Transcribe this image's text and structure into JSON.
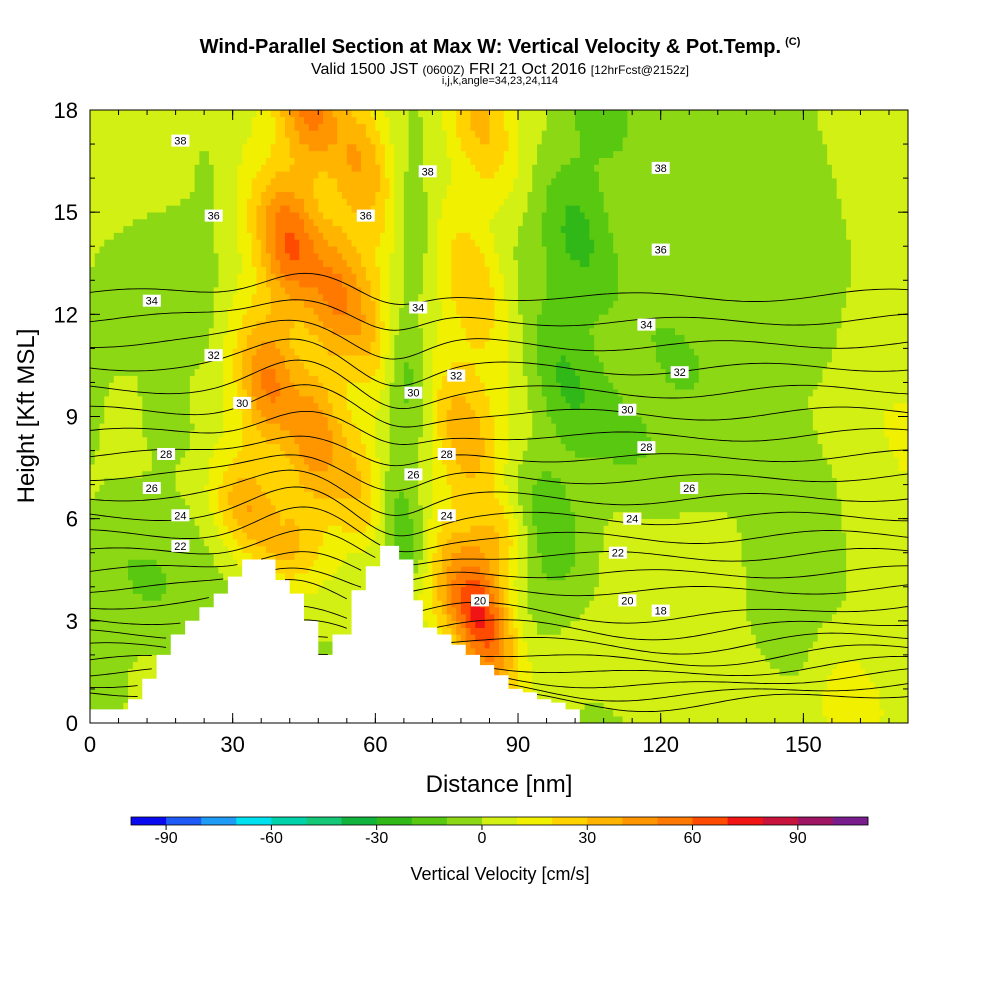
{
  "header": {
    "title": "Wind-Parallel Section at Max W: Vertical Velocity & Pot.Temp.",
    "title_mark": "(C)",
    "subtitle_main": "Valid 1500 JST",
    "subtitle_utc": "(0600Z)",
    "subtitle_date": "FRI 21 Oct 2016",
    "subtitle_run": "[12hrFcst@2152z]",
    "subtitle_indices": "i,j,k,angle=34,23,24,114"
  },
  "chart_data": {
    "type": "heatmap",
    "xlabel": "Distance [nm]",
    "ylabel": "Height [Kft MSL]",
    "xlim": [
      0,
      172
    ],
    "ylim": [
      0,
      18
    ],
    "x_ticks": [
      0,
      30,
      60,
      90,
      120,
      150
    ],
    "y_ticks": [
      0,
      3,
      6,
      9,
      12,
      15,
      18
    ],
    "colorbar": {
      "label": "Vertical Velocity [cm/s]",
      "tick_values": [
        -90,
        -60,
        -30,
        0,
        30,
        60,
        90
      ],
      "bins": [
        -100,
        -90,
        -80,
        -70,
        -60,
        -50,
        -40,
        -30,
        -20,
        -10,
        0,
        10,
        20,
        30,
        40,
        50,
        60,
        70,
        80,
        90,
        100,
        110
      ],
      "colors": [
        "#0a0af0",
        "#1e5af5",
        "#1e9bf5",
        "#00e1f0",
        "#00d2aa",
        "#14c878",
        "#10b43c",
        "#30b818",
        "#58c810",
        "#8cd814",
        "#d2f014",
        "#f0f000",
        "#ffd200",
        "#ffb400",
        "#ff9600",
        "#ff7800",
        "#ff4b00",
        "#f01414",
        "#c8143c",
        "#a01464",
        "#781e8c"
      ]
    },
    "terrain": [
      [
        0,
        0.4
      ],
      [
        8,
        0.4
      ],
      [
        8,
        0.7
      ],
      [
        11,
        0.7
      ],
      [
        11,
        1.3
      ],
      [
        14,
        1.3
      ],
      [
        14,
        2.0
      ],
      [
        17,
        2.0
      ],
      [
        17,
        2.6
      ],
      [
        20,
        2.6
      ],
      [
        20,
        3.0
      ],
      [
        23,
        3.0
      ],
      [
        23,
        3.4
      ],
      [
        26,
        3.4
      ],
      [
        26,
        3.8
      ],
      [
        29,
        3.8
      ],
      [
        29,
        4.3
      ],
      [
        32,
        4.3
      ],
      [
        32,
        4.8
      ],
      [
        39,
        4.8
      ],
      [
        39,
        4.2
      ],
      [
        42,
        4.2
      ],
      [
        42,
        3.8
      ],
      [
        45,
        3.8
      ],
      [
        45,
        3.0
      ],
      [
        48,
        3.0
      ],
      [
        48,
        2.0
      ],
      [
        51,
        2.0
      ],
      [
        51,
        2.6
      ],
      [
        55,
        2.6
      ],
      [
        55,
        3.9
      ],
      [
        58,
        3.9
      ],
      [
        58,
        4.6
      ],
      [
        61,
        4.6
      ],
      [
        61,
        5.2
      ],
      [
        65,
        5.2
      ],
      [
        65,
        4.8
      ],
      [
        68,
        4.8
      ],
      [
        68,
        3.6
      ],
      [
        70,
        3.6
      ],
      [
        70,
        2.8
      ],
      [
        73,
        2.8
      ],
      [
        73,
        2.6
      ],
      [
        76,
        2.6
      ],
      [
        76,
        2.3
      ],
      [
        79,
        2.3
      ],
      [
        79,
        2.0
      ],
      [
        82,
        2.0
      ],
      [
        82,
        1.7
      ],
      [
        85,
        1.7
      ],
      [
        85,
        1.4
      ],
      [
        88,
        1.4
      ],
      [
        88,
        1.0
      ],
      [
        91,
        1.0
      ],
      [
        91,
        0.9
      ],
      [
        94,
        0.9
      ],
      [
        94,
        0.7
      ],
      [
        97,
        0.7
      ],
      [
        97,
        0.6
      ],
      [
        100,
        0.6
      ],
      [
        100,
        0.4
      ],
      [
        103,
        0.4
      ],
      [
        103,
        0
      ]
    ],
    "updrafts": [
      {
        "x0": 40,
        "y0": 6.5,
        "x1": 50,
        "y1": 18,
        "width": 8,
        "strength": 80
      },
      {
        "x0": 57,
        "y0": 6.0,
        "x1": 65,
        "y1": 18,
        "width": 4,
        "strength": 20
      },
      {
        "x0": 77,
        "y0": 3.5,
        "x1": 82,
        "y1": 18,
        "width": 6,
        "strength": 30
      },
      {
        "x0": 82,
        "y0": 0.5,
        "x1": 84,
        "y1": 5,
        "width": 5,
        "strength": 55
      },
      {
        "x0": 160,
        "y0": 1,
        "x1": 175,
        "y1": 8,
        "width": 8,
        "strength": 12
      },
      {
        "x0": 120,
        "y0": 1,
        "x1": 125,
        "y1": 4,
        "width": 6,
        "strength": 10
      }
    ],
    "downdrafts": [
      {
        "x0": 39,
        "y0": 6.0,
        "x1": 52,
        "y1": 18,
        "width": 4,
        "strength": -35
      },
      {
        "x0": 66,
        "y0": 5.0,
        "x1": 66,
        "y1": 18,
        "width": 4,
        "strength": -25
      },
      {
        "x0": 95,
        "y0": 4.0,
        "x1": 105,
        "y1": 18,
        "width": 6,
        "strength": -20
      },
      {
        "x0": 110,
        "y0": 8.0,
        "x1": 140,
        "y1": 18,
        "width": 12,
        "strength": -10
      },
      {
        "x0": 20,
        "y0": 9.0,
        "x1": 25,
        "y1": 18,
        "width": 6,
        "strength": -8
      },
      {
        "x0": 0,
        "y0": 0.5,
        "x1": 10,
        "y1": 4,
        "width": 8,
        "strength": -10
      },
      {
        "x0": 148,
        "y0": 1.0,
        "x1": 150,
        "y1": 18,
        "width": 5,
        "strength": -8
      },
      {
        "x0": 110,
        "y0": 0,
        "x1": 125,
        "y1": 3,
        "width": 10,
        "strength": -6
      }
    ],
    "isentropes": {
      "levels": [
        16,
        17,
        18,
        19,
        20,
        21,
        22,
        23,
        24,
        25,
        26,
        27,
        28,
        29,
        30,
        31,
        32,
        33,
        34,
        35,
        36,
        37,
        38
      ],
      "labels": [
        {
          "text": "38",
          "x": 19,
          "y": 17.1
        },
        {
          "text": "38",
          "x": 71,
          "y": 16.2
        },
        {
          "text": "38",
          "x": 120,
          "y": 16.3
        },
        {
          "text": "36",
          "x": 26,
          "y": 14.9
        },
        {
          "text": "36",
          "x": 58,
          "y": 14.9
        },
        {
          "text": "36",
          "x": 120,
          "y": 13.9
        },
        {
          "text": "34",
          "x": 13,
          "y": 12.4
        },
        {
          "text": "34",
          "x": 69,
          "y": 12.2
        },
        {
          "text": "34",
          "x": 117,
          "y": 11.7
        },
        {
          "text": "32",
          "x": 26,
          "y": 10.8
        },
        {
          "text": "32",
          "x": 77,
          "y": 10.2
        },
        {
          "text": "32",
          "x": 124,
          "y": 10.3
        },
        {
          "text": "30",
          "x": 32,
          "y": 9.4
        },
        {
          "text": "30",
          "x": 68,
          "y": 9.7
        },
        {
          "text": "30",
          "x": 113,
          "y": 9.2
        },
        {
          "text": "28",
          "x": 16,
          "y": 7.9
        },
        {
          "text": "28",
          "x": 75,
          "y": 7.9
        },
        {
          "text": "28",
          "x": 117,
          "y": 8.1
        },
        {
          "text": "26",
          "x": 13,
          "y": 6.9
        },
        {
          "text": "26",
          "x": 68,
          "y": 7.3
        },
        {
          "text": "26",
          "x": 126,
          "y": 6.9
        },
        {
          "text": "24",
          "x": 19,
          "y": 6.1
        },
        {
          "text": "24",
          "x": 75,
          "y": 6.1
        },
        {
          "text": "24",
          "x": 114,
          "y": 6.0
        },
        {
          "text": "22",
          "x": 19,
          "y": 5.2
        },
        {
          "text": "22",
          "x": 111,
          "y": 5.0
        },
        {
          "text": "20",
          "x": 82,
          "y": 3.6
        },
        {
          "text": "20",
          "x": 113,
          "y": 3.6
        },
        {
          "text": "18",
          "x": 120,
          "y": 3.3
        }
      ]
    }
  }
}
